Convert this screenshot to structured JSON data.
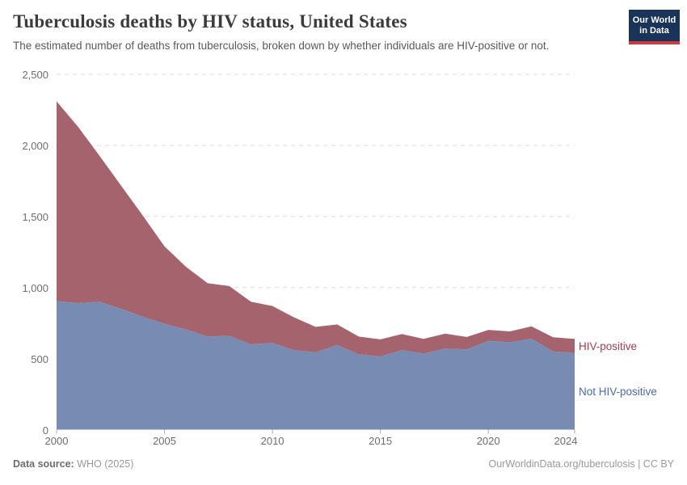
{
  "header": {
    "title": "Tuberculosis deaths by HIV status, United States",
    "subtitle": "The estimated number of deaths from tuberculosis, broken down by whether individuals are HIV-positive or not."
  },
  "logo": {
    "line1": "Our World",
    "line2": "in Data",
    "bg_color": "#1a3358",
    "bar_color": "#cf3a3f"
  },
  "chart_data": {
    "type": "area",
    "stacked": true,
    "title": "Tuberculosis deaths by HIV status, United States",
    "xlabel": "",
    "ylabel": "",
    "ylim": [
      0,
      2500
    ],
    "xlim": [
      2000,
      2024
    ],
    "grid": "horizontal-dashed",
    "legend_position": "right-of-area-end",
    "x": [
      2000,
      2001,
      2002,
      2003,
      2004,
      2005,
      2006,
      2007,
      2008,
      2009,
      2010,
      2011,
      2012,
      2013,
      2014,
      2015,
      2016,
      2017,
      2018,
      2019,
      2020,
      2021,
      2022,
      2023,
      2024
    ],
    "series": [
      {
        "name": "Not HIV-positive",
        "color": "#6d82ad",
        "label_color": "#4d6ba6",
        "values": [
          905,
          890,
          900,
          850,
          795,
          745,
          705,
          655,
          660,
          600,
          610,
          560,
          545,
          595,
          530,
          515,
          560,
          535,
          570,
          565,
          625,
          615,
          640,
          550,
          540
        ]
      },
      {
        "name": "HIV-positive",
        "color": "#9e5862",
        "label_color": "#9d3e4f",
        "values": [
          1405,
          1240,
          1025,
          865,
          710,
          545,
          440,
          375,
          350,
          300,
          260,
          230,
          178,
          145,
          125,
          120,
          113,
          104,
          105,
          87,
          77,
          76,
          87,
          100,
          99
        ]
      }
    ],
    "totals": [
      2310,
      2130,
      1925,
      1715,
      1505,
      1290,
      1145,
      1030,
      1010,
      900,
      870,
      790,
      723,
      740,
      655,
      635,
      673,
      639,
      675,
      652,
      702,
      691,
      727,
      650,
      639
    ],
    "y_tick_values": [
      0,
      500,
      1000,
      1500,
      2000,
      2500
    ],
    "y_tick_labels": [
      "0",
      "500",
      "1,000",
      "1,500",
      "2,000",
      "2,500"
    ],
    "x_tick_values": [
      2000,
      2005,
      2010,
      2015,
      2020,
      2024
    ],
    "x_tick_labels": [
      "2000",
      "2005",
      "2010",
      "2015",
      "2020",
      "2024"
    ]
  },
  "footer": {
    "source_label": "Data source:",
    "source_value": " WHO (2025)",
    "credit": "OurWorldinData.org/tuberculosis | CC BY"
  }
}
